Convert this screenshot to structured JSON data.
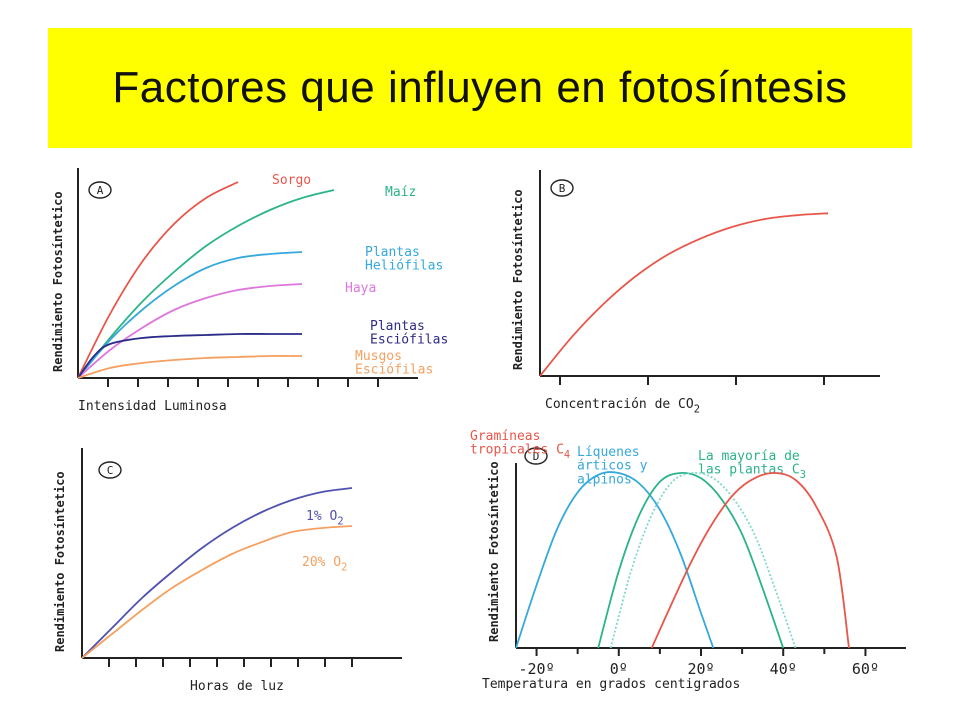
{
  "title": "Factores que influyen en fotosíntesis",
  "colors": {
    "title_bg": "#ffff00",
    "axis": "#222222",
    "red": "#e8564a",
    "green": "#2bb38a",
    "blue": "#35a8dc",
    "pink": "#dd77dd",
    "navy": "#2b2b88",
    "orange": "#f5a060",
    "purple": "#5050b0"
  },
  "chart_data": [
    {
      "type": "line",
      "panel_label": "A",
      "title": "",
      "xlabel": "Intensidad Luminosa",
      "ylabel": "Rendimiento Fotosíntetico",
      "xlim": [
        0,
        10
      ],
      "ylim": [
        0,
        10
      ],
      "tick_count": 10,
      "grid": false,
      "legend": "series labels at end of lines",
      "series": [
        {
          "name": "Sorgo",
          "color": "#e8564a",
          "x": [
            0,
            1,
            2,
            3,
            4,
            5
          ],
          "y": [
            0,
            3.2,
            5.8,
            7.7,
            9.0,
            9.8
          ]
        },
        {
          "name": "Maíz",
          "color": "#2bb38a",
          "x": [
            0,
            1,
            2,
            3,
            4,
            5,
            6,
            7,
            8
          ],
          "y": [
            0,
            2.0,
            3.8,
            5.3,
            6.6,
            7.6,
            8.4,
            9.0,
            9.4
          ]
        },
        {
          "name": "Plantas\nHeliófilas",
          "color": "#35a8dc",
          "x": [
            0,
            1,
            2,
            3,
            4,
            5,
            6,
            7
          ],
          "y": [
            0,
            1.9,
            3.4,
            4.6,
            5.5,
            6.0,
            6.2,
            6.3
          ]
        },
        {
          "name": "Haya",
          "color": "#dd77dd",
          "x": [
            0,
            1,
            2,
            3,
            4,
            5,
            6,
            7
          ],
          "y": [
            0,
            1.4,
            2.5,
            3.4,
            4.0,
            4.4,
            4.6,
            4.7
          ]
        },
        {
          "name": "Plantas\nEsciófilas",
          "color": "#2b2b88",
          "x": [
            0,
            0.5,
            1,
            2,
            3,
            4,
            5,
            6,
            7
          ],
          "y": [
            0,
            1.1,
            1.7,
            2.0,
            2.1,
            2.15,
            2.2,
            2.2,
            2.2
          ]
        },
        {
          "name": "Musgos\nEsciófilas",
          "color": "#f5a060",
          "x": [
            0,
            1,
            2,
            3,
            4,
            5,
            6,
            7
          ],
          "y": [
            0,
            0.5,
            0.75,
            0.9,
            1.0,
            1.05,
            1.1,
            1.1
          ]
        }
      ]
    },
    {
      "type": "line",
      "panel_label": "B",
      "title": "",
      "xlabel": "Concentración de CO",
      "xlabel_sub": "2",
      "ylabel": "Rendimiento Fotosíntetico",
      "xlim": [
        0,
        10
      ],
      "ylim": [
        0,
        10
      ],
      "tick_count": 4,
      "grid": false,
      "series": [
        {
          "color": "#e8564a",
          "x": [
            0,
            1,
            2,
            3,
            4,
            5,
            6,
            7,
            8,
            9
          ],
          "y": [
            0,
            2.0,
            3.7,
            5.1,
            6.2,
            7.0,
            7.6,
            8.0,
            8.2,
            8.3
          ]
        }
      ]
    },
    {
      "type": "line",
      "panel_label": "C",
      "title": "",
      "xlabel": "Horas de luz",
      "ylabel": "Rendimiento Fotosíntetico",
      "xlim": [
        0,
        10
      ],
      "ylim": [
        0,
        10
      ],
      "tick_count": 10,
      "grid": false,
      "series": [
        {
          "name": "1% O",
          "name_sub": "2",
          "color": "#5050b0",
          "x": [
            0,
            1,
            2,
            3,
            4,
            5,
            6,
            7,
            8,
            9
          ],
          "y": [
            0,
            1.5,
            3.0,
            4.3,
            5.5,
            6.5,
            7.3,
            7.9,
            8.3,
            8.5
          ]
        },
        {
          "name": "20% O",
          "name_sub": "2",
          "color": "#f5a060",
          "x": [
            0,
            1,
            2,
            3,
            4,
            5,
            6,
            7,
            8,
            9
          ],
          "y": [
            0,
            1.2,
            2.4,
            3.5,
            4.4,
            5.2,
            5.8,
            6.3,
            6.5,
            6.6
          ]
        }
      ]
    },
    {
      "type": "line",
      "panel_label": "D",
      "title": "",
      "xlabel": "Temperatura  en grados centigrados",
      "ylabel": "Rendimiento Fotosíntetico",
      "xlim": [
        -25,
        65
      ],
      "ylim": [
        0,
        10
      ],
      "tick_labels": [
        "-20º",
        "0º",
        "20º",
        "40º",
        "60º"
      ],
      "tick_values": [
        -20,
        0,
        20,
        40,
        60
      ],
      "grid": false,
      "series": [
        {
          "name": "Líquenes\nárticos y\nalpinos",
          "color": "#35a8dc",
          "x": [
            -25,
            -20,
            -15,
            -10,
            -5,
            0,
            5,
            10,
            15,
            20,
            23
          ],
          "y": [
            0,
            3.6,
            6.8,
            8.9,
            9.9,
            10.0,
            9.4,
            7.9,
            5.4,
            2.0,
            0
          ]
        },
        {
          "name": "La mayoría de\nlas plantas C",
          "name_sub": "3",
          "color": "#2bb38a",
          "x": [
            -5,
            0,
            5,
            10,
            15,
            20,
            25,
            30,
            35,
            40
          ],
          "y": [
            0,
            4.4,
            7.6,
            9.5,
            10.0,
            9.7,
            8.5,
            6.5,
            3.4,
            0
          ]
        },
        {
          "name": "",
          "color": "#7fd8cc",
          "dashed": true,
          "x": [
            -2,
            3,
            8,
            13,
            18,
            23,
            28,
            33,
            38,
            43
          ],
          "y": [
            0,
            4.4,
            7.6,
            9.5,
            10.0,
            9.7,
            8.5,
            6.5,
            3.4,
            0
          ]
        },
        {
          "name": "Gramíneas\ntropicales C",
          "name_sub": "4",
          "color": "#e8564a",
          "x": [
            8,
            13,
            18,
            23,
            28,
            33,
            38,
            43,
            48,
            53,
            56
          ],
          "y": [
            0,
            2.6,
            5.1,
            7.2,
            8.8,
            9.7,
            10.0,
            9.6,
            8.1,
            5.2,
            0
          ]
        }
      ]
    }
  ]
}
